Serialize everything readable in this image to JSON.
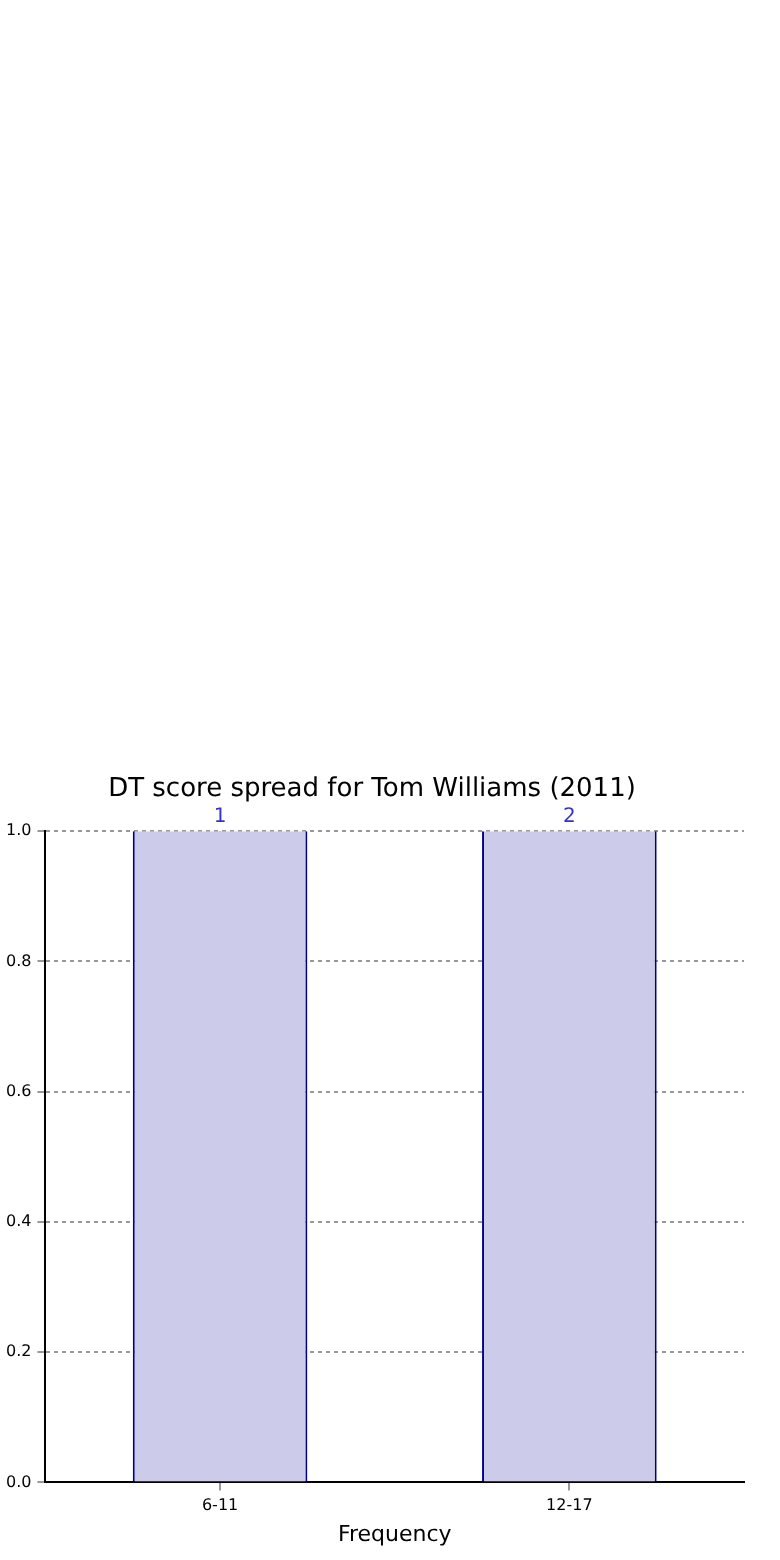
{
  "chart_data": {
    "type": "bar",
    "title": "DT score spread for Tom Williams (2011)",
    "xlabel": "Frequency",
    "categories": [
      "6-11",
      "12-17"
    ],
    "values": [
      1,
      1
    ],
    "color": "#ccccea",
    "ylim": [
      0,
      1
    ],
    "yticks": [
      {
        "value": 0,
        "label": "0.0"
      },
      {
        "value": 0.2,
        "label": "0.2"
      },
      {
        "value": 0.4,
        "label": "0.4"
      },
      {
        "value": 0.6,
        "label": "0.6"
      },
      {
        "value": 0.8,
        "label": "0.8"
      },
      {
        "value": 1,
        "label": "1.0"
      }
    ],
    "grid": true,
    "legend": false,
    "annotations": [
      {
        "text": "1",
        "x": "6-11",
        "y": 1
      },
      {
        "text": "2",
        "x": "12-17",
        "y": 1
      }
    ]
  }
}
